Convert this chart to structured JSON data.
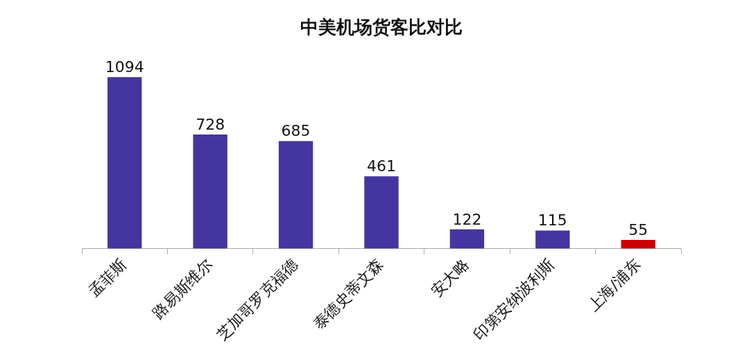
{
  "chart_data": {
    "type": "bar",
    "title": "中美机场货客比对比",
    "categories": [
      "孟菲斯",
      "路易斯维尔",
      "芝加哥罗克福德",
      "泰德史蒂文森",
      "安大略",
      "印第安纳波利斯",
      "上海/浦东"
    ],
    "values": [
      1094,
      728,
      685,
      461,
      122,
      115,
      55
    ],
    "colors": [
      "#4535a0",
      "#4535a0",
      "#4535a0",
      "#4535a0",
      "#4535a0",
      "#4535a0",
      "#cc0000"
    ],
    "data_labels": true,
    "grid": false,
    "legend": false,
    "tick_labels": "x"
  }
}
